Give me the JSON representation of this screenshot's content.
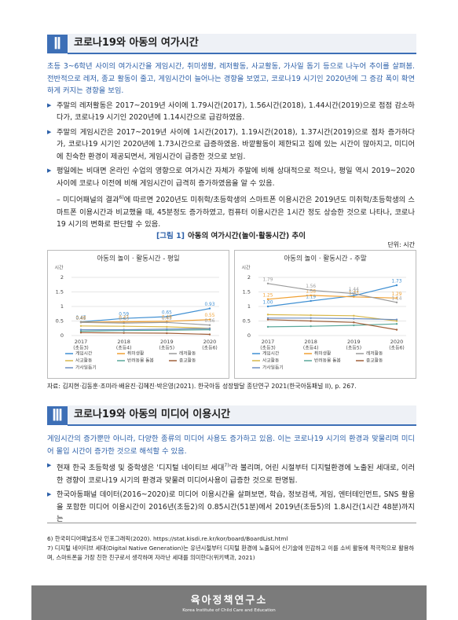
{
  "section2": {
    "number": "Ⅱ",
    "title": "코로나19와 아동의 여가시간",
    "lead": "초등 3~6학년 사이의 여가시간을 게임시간, 취미생활, 레저활동, 사교활동, 가사일 돕기 등으로 나누어 추이를 살펴봄. 전반적으로 레저, 종교 활동이 줄고, 게임시간이 늘어나는 경향을 보였고, 코로나19 시기인 2020년에 그 증감 폭이 확연하게 커지는 경향을 보임.",
    "bullets": [
      "주말의 레저활동은 2017~2019년 사이에 1.79시간(2017), 1.56시간(2018), 1.44시간(2019)으로 점점 감소하다가, 코로나19 시기인 2020년에 1.14시간으로 급감하였음.",
      "주말의 게임시간은 2017~2019년 사이에 1시간(2017), 1.19시간(2018), 1.37시간(2019)으로 점차 증가하다가, 코로나19 시기인 2020년에 1.73시간으로 급증하였음. 바깥활동이 제한되고 집에 있는 시간이 많아지고, 미디어에 친숙한 환경이 제공되면서, 게임시간이 급증한 것으로 보임.",
      "평일에는 비대면 온라인 수업의 영향으로 여가시간 자체가 주말에 비해 상대적으로 적으나, 평일 역시 2019~2020 사이에 코로나 이전에 비해 게임시간이 급격히 증가하였음을 알 수 있음."
    ],
    "sub": [
      "– 미디어패널의 결과",
      "6)",
      "에 따르면 2020년도 미취학/초등학생의 스마트폰 이용시간은 2019년도 미취학/초등학생의 스마트폰 이용시간과 비교했을 때, 45분정도 증가하였고, 컴퓨터 이용시간은 1시간 정도 상승한 것으로 나타나, 코로나19 시기의 변화로 판단할 수 있음."
    ]
  },
  "figure": {
    "label": "[그림 1]",
    "title": "아동의 여가시간(놀이·활동시간) 추이",
    "unit": "단위: 시간",
    "source": "자료: 김지현·김동훈·조미라·배윤진·김혜진·박은영(2021). 한국아동 성장발달 종단연구 2021(한국아동패널 II), p. 267."
  },
  "chart_data": [
    {
      "type": "line",
      "title": "아동의 놀이 · 활동시간 - 평일",
      "y_label": "시간",
      "categories": [
        "2017",
        "2018",
        "2019",
        "2020"
      ],
      "category_sublabels": [
        "(초등3)",
        "(초등4)",
        "(초등5)",
        "(초등6)"
      ],
      "ylim": [
        0,
        2
      ],
      "yticks": [
        0,
        0.5,
        1,
        1.5,
        2
      ],
      "grid": true,
      "series": [
        {
          "name": "게임시간",
          "color": "#3f8fd2",
          "values": [
            0.47,
            0.59,
            0.65,
            0.93
          ],
          "value_labels": [
            "0.47",
            "0.59",
            "0.65",
            "0.93"
          ]
        },
        {
          "name": "취미생활",
          "color": "#f0a032",
          "values": [
            0.46,
            0.47,
            0.49,
            0.55
          ],
          "value_labels": [
            "0.46",
            "0.47",
            "0.49",
            "0.55"
          ]
        },
        {
          "name": "레저활동",
          "color": "#9a9a9a",
          "values": [
            0.45,
            0.43,
            0.45,
            0.36
          ],
          "value_labels": [
            "0.45",
            "0.43",
            "0.45",
            "0.36"
          ]
        },
        {
          "name": "사교활동",
          "color": "#d8b84a",
          "values": [
            0.33,
            0.32,
            0.3,
            0.25
          ]
        },
        {
          "name": "반려동물 돌봄",
          "color": "#5aa89a",
          "values": [
            0.15,
            0.17,
            0.18,
            0.2
          ]
        },
        {
          "name": "종교활동",
          "color": "#a0603a",
          "values": [
            0.1,
            0.09,
            0.08,
            0.04
          ]
        },
        {
          "name": "가사일돕기",
          "color": "#6d8fc2",
          "values": [
            0.2,
            0.2,
            0.22,
            0.24
          ]
        }
      ]
    },
    {
      "type": "line",
      "title": "아동의 놀이 · 활동시간 - 주말",
      "y_label": "시간",
      "categories": [
        "2017",
        "2018",
        "2019",
        "2020"
      ],
      "category_sublabels": [
        "(초등3)",
        "(초등4)",
        "(초등5)",
        "(초등6)"
      ],
      "ylim": [
        0,
        2
      ],
      "yticks": [
        0,
        0.5,
        1,
        1.5,
        2
      ],
      "grid": true,
      "series": [
        {
          "name": "게임시간",
          "color": "#3f8fd2",
          "values": [
            1,
            1.19,
            1.37,
            1.73
          ],
          "value_labels": [
            "1.00",
            "1.19",
            "1.37",
            "1.73"
          ]
        },
        {
          "name": "취미생활",
          "color": "#f0a032",
          "values": [
            1.25,
            1.38,
            1.33,
            1.29
          ],
          "value_labels": [
            "1.25",
            "1.38",
            "1.33",
            "1.29"
          ]
        },
        {
          "name": "레저활동",
          "color": "#9a9a9a",
          "values": [
            1.79,
            1.56,
            1.44,
            1.14
          ],
          "value_labels": [
            "1.79",
            "1.56",
            "1.44",
            "1.14"
          ]
        },
        {
          "name": "사교활동",
          "color": "#d8b84a",
          "values": [
            0.72,
            0.7,
            0.68,
            0.5
          ]
        },
        {
          "name": "반려동물 돌봄",
          "color": "#5aa89a",
          "values": [
            0.3,
            0.32,
            0.35,
            0.4
          ]
        },
        {
          "name": "종교활동",
          "color": "#a0603a",
          "values": [
            0.55,
            0.5,
            0.45,
            0.2
          ]
        },
        {
          "name": "가사일돕기",
          "color": "#6d8fc2",
          "values": [
            0.6,
            0.6,
            0.58,
            0.55
          ]
        }
      ]
    }
  ],
  "section3": {
    "number": "Ⅲ",
    "title": "코로나19와 아동의 미디어 이용시간",
    "lead": "게임시간의 증가뿐만 아니라, 다양한 종류의 미디어 사용도 증가하고 있음. 이는 코로나19 시기의 환경과 맞물리며 미디어 몰입 시간이 증가한 것으로 해석할 수 있음.",
    "bullet1": [
      "현재 한국 초등학생 및 중학생은 '디지털 네이티브 세대",
      "7)",
      "'라 불리며, 어린 시절부터 디지털환경에 노출된 세대로, 이러한 경향이 코로나19 시기의 환경과 맞물려 미디어사용이 급증한 것으로 판명됨."
    ],
    "bullet2": "한국아동패널 데이터(2016~2020)로 미디어 이용시간을 살펴보면, 학습, 정보검색, 게임, 엔터테인먼트, SNS 활용을 포함한 미디어 이용시간이 2016년(초등2)의 0.85시간(51분)에서 2019년(초등5)의 1.8시간(1시간 48분)까지는"
  },
  "footnotes": [
    "6) 한국미디어패널조사 인포그래픽(2020). https://stat.kisdi.re.kr/kor/board/BoardList.html",
    "7) 디지털 네이티브 세대(Digital Native Generation)는 유년시절부터 디지털 환경에 노출되어 신기술에 민감하고 이를 소비 활동에 적극적으로 활용하며, 스마트폰을 가장 친한 친구로서 생각하며 자라난 세대를 의미한다(위키백과, 2021)"
  ],
  "footer": {
    "name": "육아정책연구소",
    "english": "Korea Institute of Child Care and Education"
  }
}
